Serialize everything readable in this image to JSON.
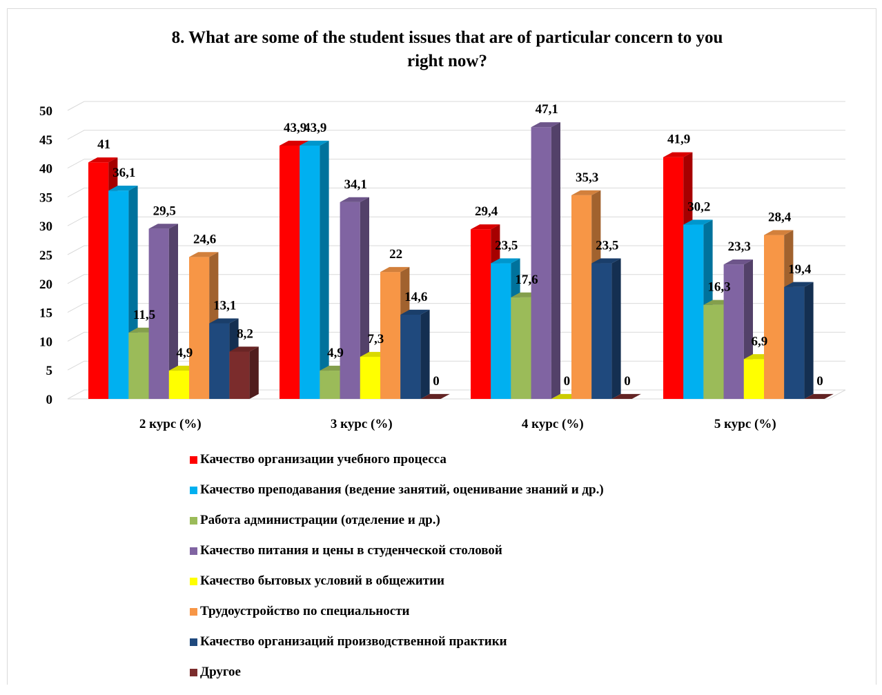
{
  "chart_data": {
    "type": "bar",
    "title_lines": [
      "8. What are some of the student issues that are of particular concern to you",
      "right now?"
    ],
    "xlabel": "",
    "ylabel": "",
    "ylim": [
      0,
      50
    ],
    "yticks": [
      0,
      5,
      10,
      15,
      20,
      25,
      30,
      35,
      40,
      45,
      50
    ],
    "grid": true,
    "legend_position": "bottom",
    "categories": [
      "2 курс (%)",
      "3 курс (%)",
      "4 курс (%)",
      "5 курс (%)"
    ],
    "series": [
      {
        "name": "Качество организации учебного процесса",
        "color": "#ff0000",
        "values": [
          41,
          43.9,
          29.4,
          41.9
        ],
        "labels": [
          "41",
          "43,9",
          "29,4",
          "41,9"
        ]
      },
      {
        "name": "Качество преподавания (ведение занятий, оценивание знаний и др.)",
        "color": "#00b0f0",
        "values": [
          36.1,
          43.9,
          23.5,
          30.2
        ],
        "labels": [
          "36,1",
          "43,9",
          "23,5",
          "30,2"
        ]
      },
      {
        "name": "Работа администрации (отделение и др.)",
        "color": "#9bbb59",
        "values": [
          11.5,
          4.9,
          17.6,
          16.3
        ],
        "labels": [
          "11,5",
          "4,9",
          "17,6",
          "16,3"
        ]
      },
      {
        "name": "Качество питания и цены в студенческой столовой",
        "color": "#8064a2",
        "values": [
          29.5,
          34.1,
          47.1,
          23.3
        ],
        "labels": [
          "29,5",
          "34,1",
          "47,1",
          "23,3"
        ]
      },
      {
        "name": "Качество бытовых условий в общежитии",
        "color": "#ffff00",
        "values": [
          4.9,
          7.3,
          0,
          6.9
        ],
        "labels": [
          "4,9",
          "7,3",
          "0",
          "6,9"
        ]
      },
      {
        "name": "Трудоустройство по специальности",
        "color": "#f79646",
        "values": [
          24.6,
          22,
          35.3,
          28.4
        ],
        "labels": [
          "24,6",
          "22",
          "35,3",
          "28,4"
        ]
      },
      {
        "name": "Качество организаций производственной практики",
        "color": "#1f497d",
        "values": [
          13.1,
          14.6,
          23.5,
          19.4
        ],
        "labels": [
          "13,1",
          "14,6",
          "23,5",
          "19,4"
        ]
      },
      {
        "name": "Другое",
        "color": "#7b2c2c",
        "values": [
          8.2,
          0,
          0,
          0
        ],
        "labels": [
          "8,2",
          "0",
          "0",
          "0"
        ]
      }
    ]
  }
}
